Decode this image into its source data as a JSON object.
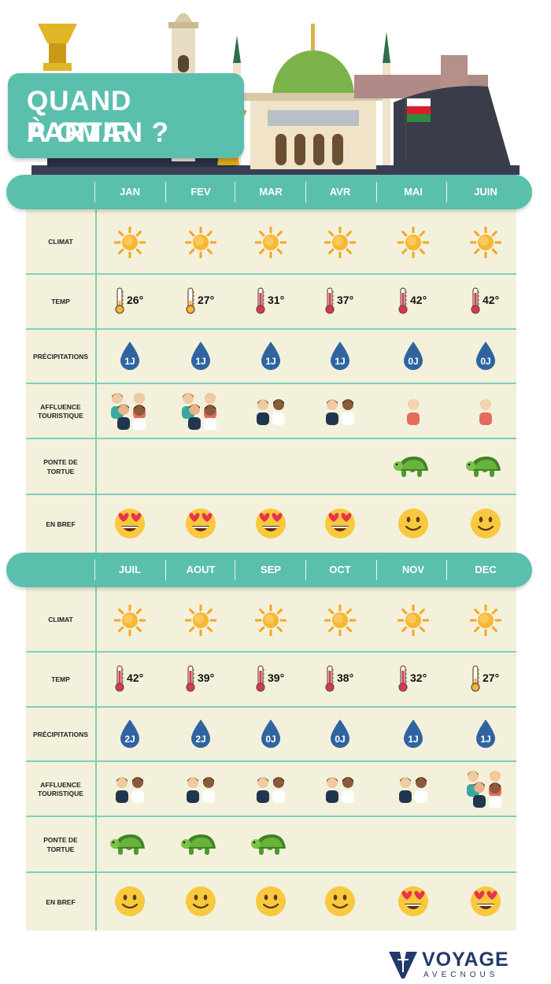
{
  "title": {
    "line1": "QUAND PARTIR",
    "line2": "À OMAN ?"
  },
  "row_labels": {
    "climat": "CLIMAT",
    "temp": "TEMP",
    "precip": "PRÉCIPITATIONS",
    "affluence": "AFFLUENCE\nTOURISTIQUE",
    "tortue": "PONTE DE\nTORTUE",
    "bref": "EN BREF"
  },
  "sections": [
    {
      "months": [
        "JAN",
        "FEV",
        "MAR",
        "AVR",
        "MAI",
        "JUIN"
      ],
      "climate_icons": [
        "sun-icon",
        "sun-icon",
        "sun-icon",
        "sun-icon",
        "sun-icon",
        "sun-icon"
      ],
      "temps": [
        "26°",
        "27°",
        "31°",
        "37°",
        "42°",
        "42°"
      ],
      "temp_levels": [
        "low",
        "low",
        "high",
        "high",
        "high",
        "high"
      ],
      "rain_days": [
        "1J",
        "1J",
        "1J",
        "1J",
        "0J",
        "0J"
      ],
      "affluence": [
        "high",
        "high",
        "medium",
        "medium",
        "low",
        "low"
      ],
      "turtle": [
        false,
        false,
        false,
        false,
        true,
        true
      ],
      "verdict": [
        "love",
        "love",
        "love",
        "love",
        "smile",
        "smile"
      ]
    },
    {
      "months": [
        "JUIL",
        "AOUT",
        "SEP",
        "OCT",
        "NOV",
        "DEC"
      ],
      "climate_icons": [
        "sun-icon",
        "sun-icon",
        "sun-icon",
        "sun-icon",
        "sun-icon",
        "sun-icon"
      ],
      "temps": [
        "42°",
        "39°",
        "39°",
        "38°",
        "32°",
        "27°"
      ],
      "temp_levels": [
        "high",
        "high",
        "high",
        "high",
        "high",
        "low"
      ],
      "rain_days": [
        "2J",
        "2J",
        "0J",
        "0J",
        "1J",
        "1J"
      ],
      "affluence": [
        "medium",
        "medium",
        "medium",
        "medium",
        "medium",
        "high"
      ],
      "turtle": [
        true,
        true,
        true,
        false,
        false,
        false
      ],
      "verdict": [
        "smile",
        "smile",
        "smile",
        "smile",
        "love",
        "love"
      ]
    }
  ],
  "logo": {
    "word": "VOYAGE",
    "sub": "AVECNOUS"
  },
  "colors": {
    "teal": "#5bbfad",
    "grid_bg": "#f3f1dc",
    "line": "#7fcfbf",
    "drop": "#2f64a0"
  }
}
